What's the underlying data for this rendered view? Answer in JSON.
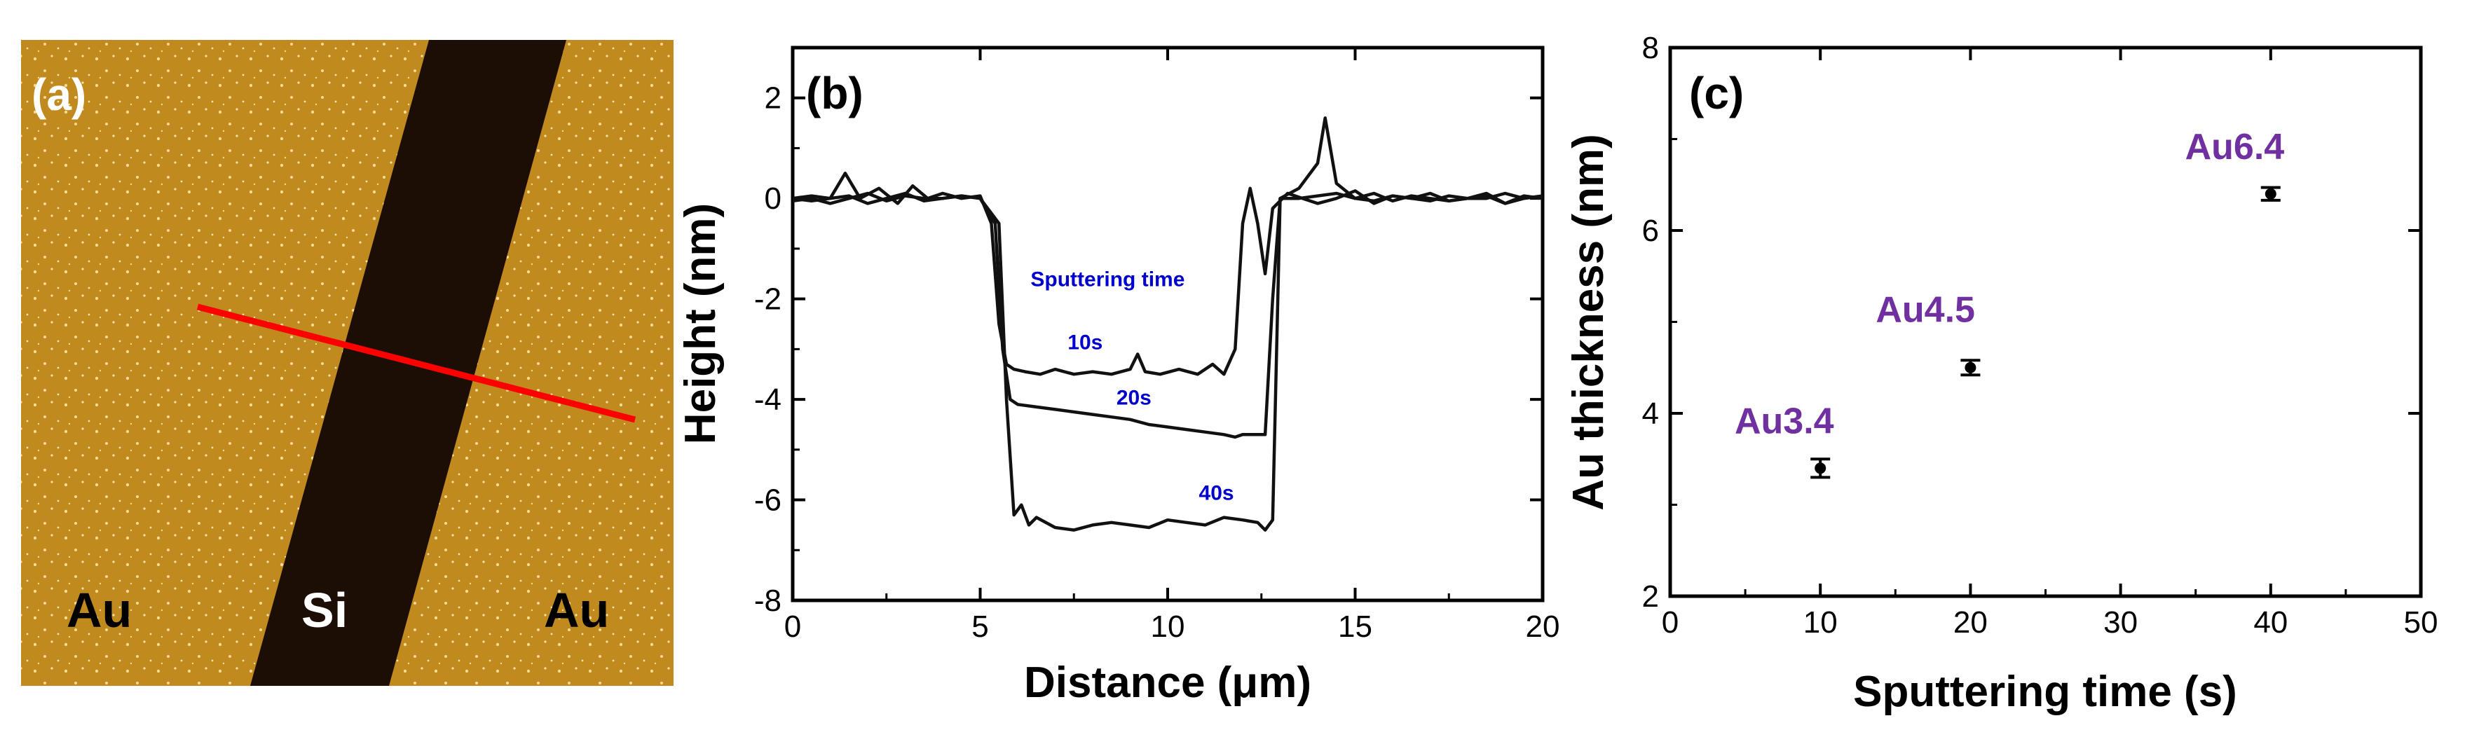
{
  "panel_a": {
    "label": "(a)",
    "material_left": "Au",
    "material_center": "Si",
    "material_right": "Au",
    "colors": {
      "gold": "#c08a1e",
      "trench": "#1c0d05",
      "line": "#ff0000"
    }
  },
  "chart_data": [
    {
      "panel": "(b)",
      "type": "line",
      "xlabel": "Distance (μm)",
      "ylabel": "Height (nm)",
      "xlim": [
        0,
        20
      ],
      "ylim": [
        -8,
        3
      ],
      "xticks": [
        0,
        5,
        10,
        15,
        20
      ],
      "yticks": [
        -8,
        -6,
        -4,
        -2,
        0,
        2
      ],
      "annotation": "Sputtering time",
      "series": [
        {
          "name": "10s",
          "x": [
            0,
            0.5,
            1.0,
            1.4,
            1.8,
            2.3,
            2.8,
            3.2,
            3.6,
            4.0,
            4.5,
            5.0,
            5.3,
            5.5,
            5.7,
            5.9,
            6.2,
            6.6,
            7.0,
            7.5,
            8.0,
            8.5,
            9.0,
            9.2,
            9.4,
            9.8,
            10.3,
            10.8,
            11.2,
            11.5,
            11.8,
            12.0,
            12.2,
            12.4,
            12.6,
            12.8,
            13.2,
            13.6,
            14.0,
            14.5,
            15.0,
            15.5,
            16.0,
            16.5,
            17.0,
            17.5,
            18.0,
            18.5,
            19.0,
            19.5,
            20.0
          ],
          "y": [
            0.0,
            0.05,
            0.0,
            0.5,
            0.0,
            0.2,
            -0.1,
            0.25,
            0.0,
            0.1,
            0.0,
            0.05,
            -0.5,
            -2.5,
            -3.3,
            -3.4,
            -3.45,
            -3.5,
            -3.4,
            -3.5,
            -3.45,
            -3.5,
            -3.4,
            -3.1,
            -3.45,
            -3.5,
            -3.4,
            -3.5,
            -3.3,
            -3.5,
            -3.0,
            -0.5,
            0.2,
            -0.5,
            -1.5,
            -0.2,
            0.1,
            0.0,
            -0.1,
            0.0,
            0.15,
            -0.1,
            0.05,
            0.0,
            0.1,
            -0.05,
            0.0,
            0.1,
            -0.1,
            0.05,
            0.0
          ],
          "label_at": [
            7.8,
            -3.0
          ],
          "label_color": "#0000cc"
        },
        {
          "name": "20s",
          "x": [
            0,
            0.5,
            1.0,
            1.5,
            2.0,
            2.5,
            3.0,
            3.5,
            4.0,
            4.5,
            5.0,
            5.4,
            5.6,
            5.8,
            6.0,
            6.5,
            7.0,
            7.5,
            8.0,
            8.5,
            9.0,
            9.5,
            10.0,
            10.5,
            11.0,
            11.5,
            11.8,
            12.0,
            12.3,
            12.6,
            12.8,
            13.0,
            13.5,
            14.0,
            14.2,
            14.5,
            15.0,
            15.5,
            16.0,
            16.5,
            17.0,
            17.5,
            18.0,
            18.5,
            19.0,
            19.5,
            20.0
          ],
          "y": [
            -0.05,
            0.0,
            -0.1,
            0.0,
            0.1,
            -0.05,
            0.05,
            0.0,
            0.0,
            0.05,
            0.0,
            -0.5,
            -3.0,
            -4.0,
            -4.1,
            -4.15,
            -4.2,
            -4.25,
            -4.3,
            -4.35,
            -4.4,
            -4.5,
            -4.55,
            -4.6,
            -4.65,
            -4.7,
            -4.75,
            -4.7,
            -4.7,
            -4.7,
            -2.0,
            0.0,
            0.2,
            0.7,
            1.6,
            0.3,
            0.0,
            0.1,
            -0.05,
            0.05,
            0.0,
            -0.05,
            0.0,
            0.05,
            -0.1,
            0.0,
            0.05
          ],
          "label_at": [
            9.1,
            -4.1
          ],
          "label_color": "#0000cc"
        },
        {
          "name": "40s",
          "x": [
            0,
            0.5,
            1.0,
            1.5,
            2.0,
            2.5,
            3.0,
            3.5,
            4.0,
            4.5,
            5.0,
            5.5,
            5.7,
            5.9,
            6.1,
            6.3,
            6.5,
            7.0,
            7.5,
            8.0,
            8.5,
            9.0,
            9.5,
            10.0,
            10.5,
            11.0,
            11.5,
            12.0,
            12.4,
            12.6,
            12.8,
            13.0,
            13.5,
            14.0,
            14.5,
            15.0,
            15.5,
            16.0,
            16.5,
            17.0,
            17.5,
            18.0,
            18.5,
            19.0,
            19.5,
            20.0
          ],
          "y": [
            0.0,
            -0.05,
            0.0,
            0.05,
            -0.1,
            0.0,
            0.1,
            -0.05,
            0.0,
            0.05,
            0.0,
            -0.5,
            -4.0,
            -6.3,
            -6.1,
            -6.5,
            -6.35,
            -6.55,
            -6.6,
            -6.5,
            -6.45,
            -6.5,
            -6.55,
            -6.4,
            -6.45,
            -6.5,
            -6.35,
            -6.4,
            -6.45,
            -6.6,
            -6.4,
            0.0,
            0.0,
            0.05,
            0.1,
            0.0,
            -0.05,
            0.05,
            0.0,
            -0.05,
            0.05,
            0.0,
            0.0,
            0.1,
            0.0,
            0.05
          ],
          "label_at": [
            11.3,
            -6.0
          ],
          "label_color": "#0000cc"
        }
      ]
    },
    {
      "panel": "(c)",
      "type": "scatter",
      "xlabel": "Sputtering time (s)",
      "ylabel": "Au thickness (nm)",
      "xlim": [
        0,
        50
      ],
      "ylim": [
        2,
        8
      ],
      "xticks": [
        0,
        10,
        20,
        30,
        40,
        50
      ],
      "yticks": [
        2,
        4,
        6,
        8
      ],
      "points": [
        {
          "x": 10,
          "y": 3.4,
          "err": 0.1,
          "label": "Au3.4",
          "label_at": [
            7.6,
            3.78
          ]
        },
        {
          "x": 20,
          "y": 4.5,
          "err": 0.08,
          "label": "Au4.5",
          "label_at": [
            17.0,
            5.0
          ]
        },
        {
          "x": 40,
          "y": 6.4,
          "err": 0.07,
          "label": "Au6.4",
          "label_at": [
            37.6,
            6.78
          ]
        }
      ],
      "label_color": "#7030a0"
    }
  ]
}
